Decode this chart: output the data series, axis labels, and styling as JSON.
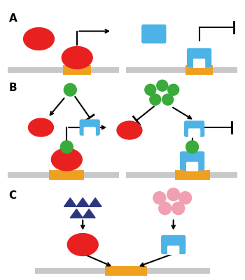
{
  "bg_color": "#ffffff",
  "label_A": "A",
  "label_B": "B",
  "label_C": "C",
  "red_color": "#e82020",
  "blue_color": "#4db3e6",
  "orange_color": "#f0a020",
  "gray_color": "#c8c8c8",
  "green_color": "#3aaa3a",
  "dark_blue_tri": "#2c3580",
  "pink_circle": "#f0a0b0",
  "lw_dna": 5,
  "lw_arrow": 1.5
}
